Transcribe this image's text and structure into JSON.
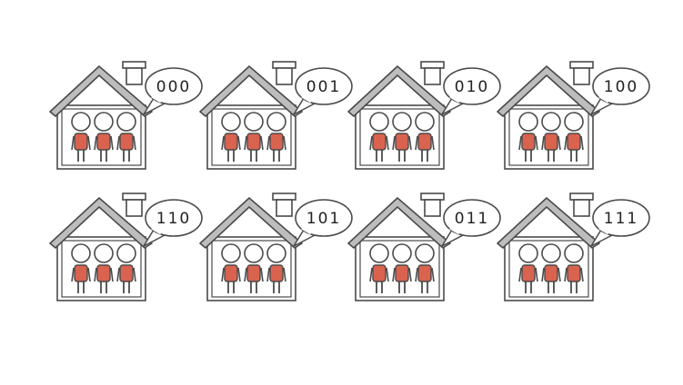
{
  "houses": [
    {
      "code": "000"
    },
    {
      "code": "001"
    },
    {
      "code": "010"
    },
    {
      "code": "100"
    },
    {
      "code": "110"
    },
    {
      "code": "101"
    },
    {
      "code": "011"
    },
    {
      "code": "111"
    }
  ],
  "colors": {
    "outline": "#4a4a4a",
    "roof": "#bdbdbd",
    "body": "#d9634f",
    "head": "#ffffff",
    "background": "#ffffff"
  }
}
